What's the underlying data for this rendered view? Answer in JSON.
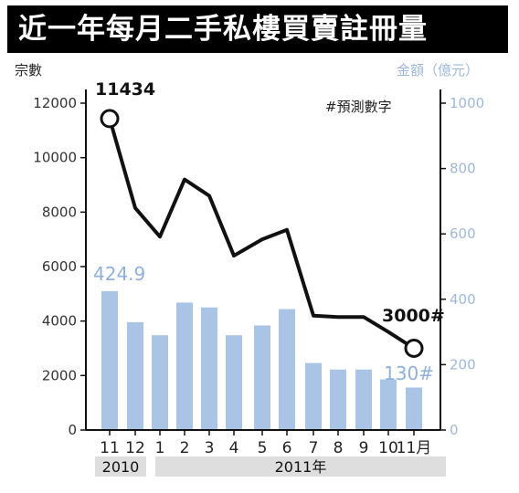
{
  "chart_data": {
    "type": "bar+line",
    "title": "近一年每月二手私樓買賣註冊量",
    "ylabel_left": "宗數",
    "ylabel_right": "金額（億元）",
    "categories": [
      "11",
      "12",
      "1",
      "2",
      "3",
      "4",
      "5",
      "6",
      "7",
      "8",
      "9",
      "10",
      "11月"
    ],
    "year_groups": [
      {
        "label": "2010",
        "span": [
          0,
          1
        ]
      },
      {
        "label": "2011年",
        "span": [
          2,
          12
        ]
      }
    ],
    "y_left_ticks": [
      "0",
      "2000",
      "4000",
      "6000",
      "8000",
      "10000",
      "12000"
    ],
    "y_left_range": [
      0,
      12000
    ],
    "y_right_ticks": [
      "0",
      "200",
      "400",
      "600",
      "800",
      "1000"
    ],
    "y_right_range": [
      0,
      1000
    ],
    "series": [
      {
        "name": "宗數",
        "kind": "line",
        "axis": "left",
        "values": [
          11434,
          8150,
          7100,
          9200,
          8600,
          6400,
          7000,
          7350,
          4200,
          4150,
          4150,
          3600,
          3000
        ]
      },
      {
        "name": "金額",
        "kind": "bar",
        "axis": "right",
        "values": [
          424.9,
          330,
          290,
          390,
          375,
          290,
          320,
          370,
          205,
          185,
          185,
          155,
          130
        ]
      }
    ],
    "data_labels": {
      "line_first": "11434",
      "line_last": "3000#",
      "bar_first": "424.9",
      "bar_last": "130#"
    },
    "note": "#預測數字",
    "colors": {
      "bar": "#aac4e6",
      "line": "#111111",
      "title_bg": "#000000",
      "year_bg": "#dedede"
    }
  }
}
